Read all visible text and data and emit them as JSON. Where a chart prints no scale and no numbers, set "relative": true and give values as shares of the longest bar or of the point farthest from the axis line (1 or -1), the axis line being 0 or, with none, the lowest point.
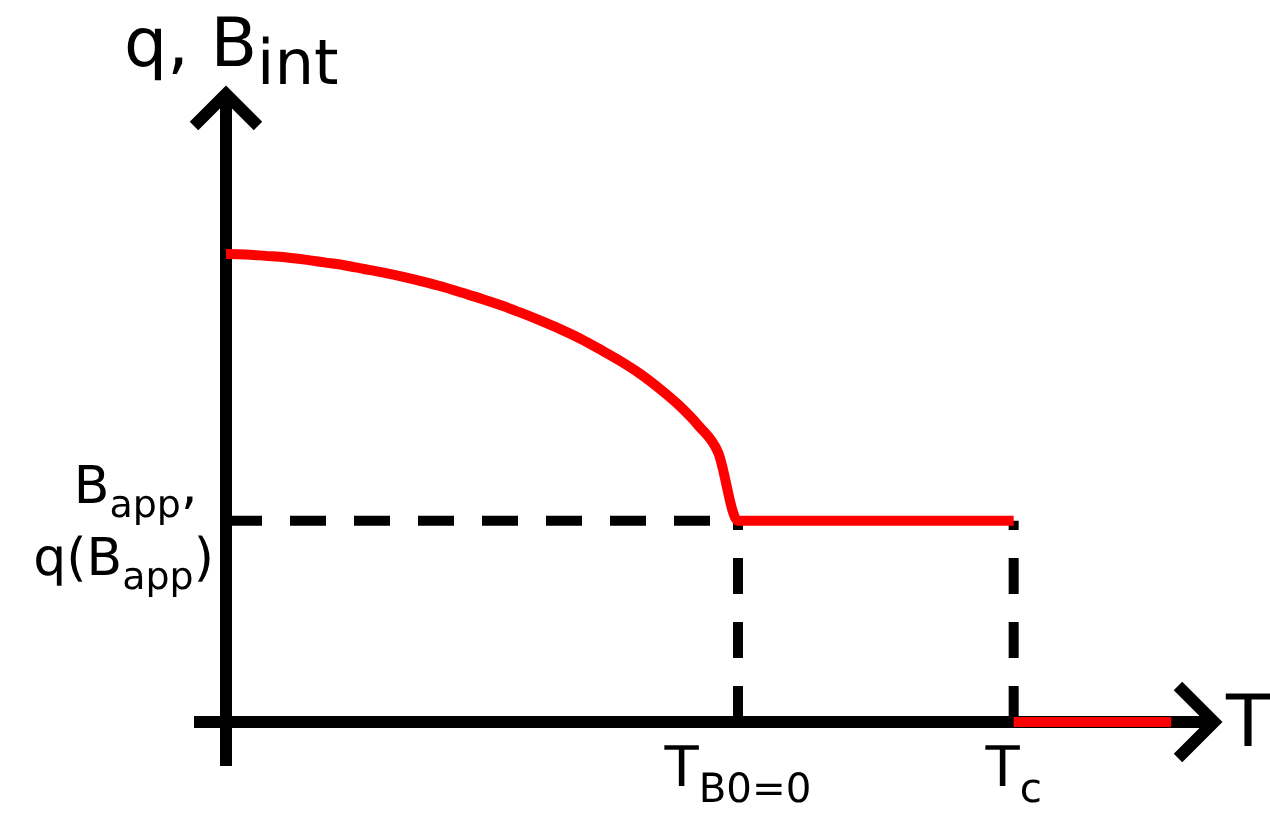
{
  "chart_data": {
    "type": "line",
    "relative": true,
    "xlabel": "T",
    "ylabel": "q, B$_{int}$",
    "categories": [
      null,
      null,
      null,
      null,
      null,
      null,
      null,
      null,
      null,
      null,
      null,
      null,
      null,
      null,
      null,
      null,
      null,
      null,
      null,
      null,
      null,
      null,
      null,
      null,
      null,
      null,
      "T$_{B0=0}$",
      null,
      null,
      null,
      null,
      null,
      null,
      null,
      null,
      null,
      null,
      null,
      null,
      null,
      "T$_{c}$",
      null,
      null,
      null,
      null,
      null,
      null,
      null,
      null
    ],
    "series": [
      {
        "color": "#000000",
        "line_style": "dashed",
        "values": [
          0.43,
          0.43,
          0.43,
          0.43,
          0.43,
          0.43,
          0.43,
          0.43,
          0.43,
          0.43,
          0.43,
          0.43,
          0.43,
          0.43,
          0.43,
          0.43,
          0.43,
          0.43,
          0.43,
          0.43,
          0.43,
          0.43,
          0.43,
          0.43,
          0.43,
          0.43,
          0.43,
          null,
          null,
          null,
          null,
          null,
          null,
          null,
          null,
          null,
          null,
          null,
          null,
          null,
          null,
          null,
          null,
          null,
          null,
          null,
          null,
          null,
          null
        ]
      },
      {
        "color": "#000000",
        "line_style": "dashed",
        "x": [
          "T$_{B0=0}$",
          "T$_{B0=0}$"
        ],
        "values": [
          0,
          0.43
        ]
      },
      {
        "color": "#000000",
        "line_style": "dashed",
        "x": [
          "T$_{c}$",
          "T$_{c}$"
        ],
        "values": [
          0,
          0.43
        ]
      },
      {
        "color": "#ff0000",
        "values": [
          1,
          0.999,
          0.996,
          0.993,
          0.988,
          0.982,
          0.976,
          0.968,
          0.96,
          0.951,
          0.941,
          0.93,
          0.917,
          0.904,
          0.89,
          0.874,
          0.857,
          0.839,
          0.819,
          0.796,
          0.772,
          0.745,
          0.713,
          0.677,
          0.633,
          0.575,
          0.43,
          0.43,
          0.43,
          0.43,
          0.43,
          0.43,
          0.43,
          0.43,
          0.43,
          0.43,
          0.43,
          0.43,
          0.43,
          0.43,
          0.43,
          null,
          null,
          null,
          null,
          null,
          null,
          null,
          null
        ]
      },
      {
        "color": "#ff0000",
        "values": [
          null,
          null,
          null,
          null,
          null,
          null,
          null,
          null,
          null,
          null,
          null,
          null,
          null,
          null,
          null,
          null,
          null,
          null,
          null,
          null,
          null,
          null,
          null,
          null,
          null,
          null,
          null,
          null,
          null,
          null,
          null,
          null,
          null,
          null,
          null,
          null,
          null,
          null,
          null,
          null,
          0,
          0,
          0,
          0,
          0,
          0,
          0,
          0,
          0
        ]
      }
    ],
    "annotations": [
      "B$_{app}$, q(B$_{app}$)"
    ]
  }
}
